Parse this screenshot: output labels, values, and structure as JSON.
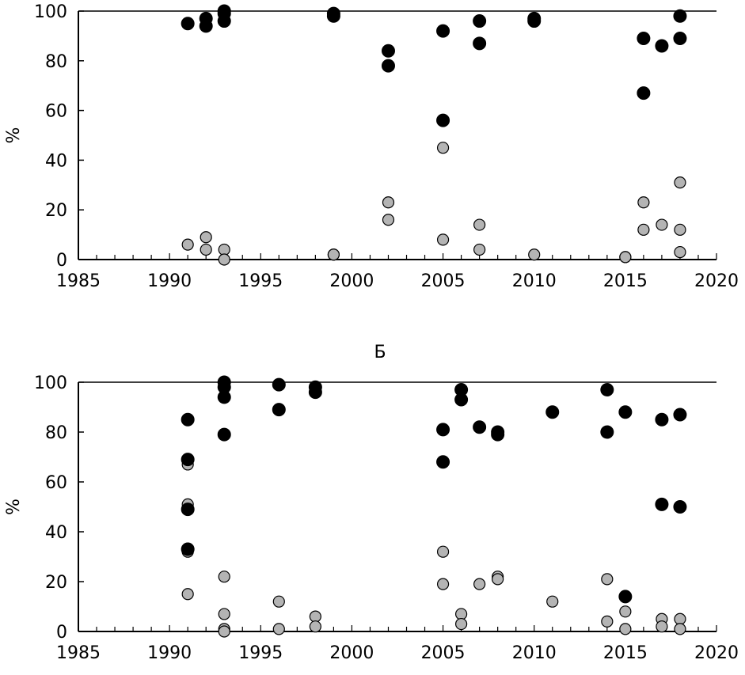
{
  "chart_data": [
    {
      "type": "scatter",
      "title": "",
      "xlabel": "",
      "ylabel": "%",
      "xlim": [
        1985,
        2020
      ],
      "ylim": [
        0,
        100
      ],
      "xticks": [
        1985,
        1990,
        1995,
        2000,
        2005,
        2010,
        2015,
        2020
      ],
      "yticks": [
        0,
        20,
        40,
        60,
        80,
        100
      ],
      "grid": false,
      "series": [
        {
          "color": "#000000",
          "x": [
            1991,
            1992,
            1992,
            1993,
            1993,
            1993,
            1999,
            1999,
            2002,
            2002,
            2005,
            2005,
            2007,
            2007,
            2010,
            2010,
            2016,
            2016,
            2017,
            2018,
            2018
          ],
          "y": [
            95,
            94,
            97,
            96,
            99,
            100,
            98,
            99,
            84,
            78,
            92,
            56,
            96,
            87,
            96,
            97,
            89,
            67,
            86,
            98,
            89
          ]
        },
        {
          "color": "#b4b4b4",
          "x": [
            1991,
            1992,
            1992,
            1993,
            1993,
            1999,
            1999,
            2002,
            2002,
            2005,
            2005,
            2007,
            2007,
            2010,
            2015,
            2015,
            2016,
            2016,
            2017,
            2018,
            2018,
            2018
          ],
          "y": [
            6,
            9,
            4,
            4,
            0,
            2,
            2,
            23,
            16,
            45,
            8,
            14,
            4,
            2,
            1,
            1,
            23,
            12,
            14,
            31,
            12,
            3
          ]
        }
      ]
    },
    {
      "type": "scatter",
      "title": "Б",
      "xlabel": "",
      "ylabel": "%",
      "xlim": [
        1985,
        2020
      ],
      "ylim": [
        0,
        100
      ],
      "xticks": [
        1985,
        1990,
        1995,
        2000,
        2005,
        2010,
        2015,
        2020
      ],
      "yticks": [
        0,
        20,
        40,
        60,
        80,
        100
      ],
      "grid": false,
      "series": [
        {
          "color": "#000000",
          "x": [
            1991,
            1991,
            1991,
            1991,
            1993,
            1993,
            1993,
            1993,
            1996,
            1996,
            1998,
            1998,
            2005,
            2005,
            2006,
            2006,
            2007,
            2008,
            2008,
            2011,
            2014,
            2014,
            2015,
            2015,
            2017,
            2017,
            2018,
            2018
          ],
          "y": [
            85,
            69,
            49,
            33,
            100,
            98,
            94,
            79,
            99,
            89,
            98,
            96,
            81,
            68,
            97,
            93,
            82,
            80,
            79,
            88,
            97,
            80,
            88,
            14,
            85,
            51,
            87,
            50
          ]
        },
        {
          "color": "#b4b4b4",
          "x": [
            1991,
            1991,
            1991,
            1991,
            1993,
            1993,
            1993,
            1993,
            1996,
            1996,
            1998,
            1998,
            2005,
            2005,
            2006,
            2006,
            2007,
            2008,
            2008,
            2011,
            2014,
            2014,
            2015,
            2015,
            2017,
            2017,
            2018,
            2018
          ],
          "y": [
            67,
            51,
            32,
            15,
            22,
            7,
            1,
            0,
            12,
            1,
            6,
            2,
            32,
            19,
            7,
            3,
            19,
            22,
            21,
            12,
            21,
            4,
            8,
            1,
            5,
            2,
            5,
            1
          ]
        }
      ]
    }
  ]
}
